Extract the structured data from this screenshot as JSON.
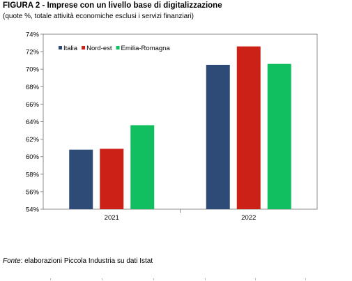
{
  "figure": {
    "title": "FIGURA 2 - Imprese con un livello base di digitalizzazione",
    "subtitle": "(quote %, totale attività economiche esclusi i servizi finanziari)"
  },
  "source": {
    "label": "Fonte",
    "text": ": elaborazioni Piccola Industria su dati Istat"
  },
  "chart_data": {
    "type": "bar",
    "categories": [
      "2021",
      "2022"
    ],
    "series": [
      {
        "name": "Italia",
        "color": "#2e4a76",
        "values": [
          60.8,
          70.5
        ]
      },
      {
        "name": "Nord-est",
        "color": "#cc2116",
        "values": [
          60.9,
          72.6
        ]
      },
      {
        "name": "Emilia-Romagna",
        "color": "#11bf61",
        "values": [
          63.6,
          70.6
        ]
      }
    ],
    "ylim": [
      54,
      74
    ],
    "yticks": [
      54,
      56,
      58,
      60,
      62,
      64,
      66,
      68,
      70,
      72,
      74
    ],
    "ytick_labels": [
      "54%",
      "56%",
      "58%",
      "60%",
      "62%",
      "64%",
      "66%",
      "68%",
      "70%",
      "72%",
      "74%"
    ],
    "grid": false,
    "legend_position": "top-left"
  }
}
